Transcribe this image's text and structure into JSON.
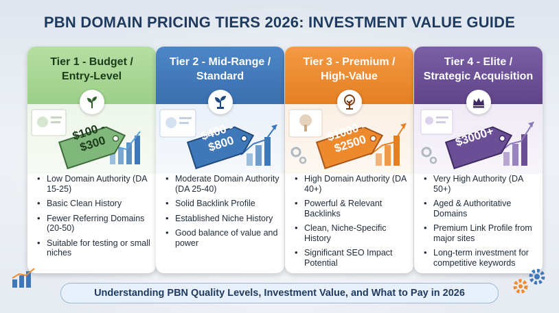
{
  "title": "PBN DOMAIN PRICING TIERS 2026: INVESTMENT VALUE GUIDE",
  "footer": "Understanding PBN Quality Levels, Investment Value, and What to Pay in 2026",
  "colors": {
    "tier1": "#8fc97a",
    "tier2": "#3f78b8",
    "tier3": "#ee8a2e",
    "tier4": "#6b4f96",
    "title": "#1f3a5f"
  },
  "tiers": [
    {
      "heading_line1": "Tier 1 - Budget /",
      "heading_line2": "Entry-Level",
      "icon": "seedling-icon",
      "price_line1": "$100 -",
      "price_line2": "$300",
      "bullets": [
        "Low Domain Authority (DA 15-25)",
        "Basic Clean History",
        "Fewer Referring Domains (20-50)",
        "Suitable for testing or small niches"
      ]
    },
    {
      "heading_line1": "Tier 2 - Mid-Range /",
      "heading_line2": "Standard",
      "icon": "sprout-icon",
      "price_line1": "$400 -",
      "price_line2": "$800",
      "bullets": [
        "Moderate Domain Authority (DA 25-40)",
        "Solid Backlink Profile",
        "Established Niche History",
        "Good balance of value and power"
      ]
    },
    {
      "heading_line1": "Tier 3 - Premium /",
      "heading_line2": "High-Value",
      "icon": "tree-icon",
      "price_line1": "$1000 -",
      "price_line2": "$2500",
      "bullets": [
        "High Domain Authority (DA 40+)",
        "Powerful & Relevant Backlinks",
        "Clean, Niche-Specific History",
        "Significant SEO Impact Potential"
      ]
    },
    {
      "heading_line1": "Tier 4 - Elite /",
      "heading_line2": "Strategic Acquisition",
      "icon": "crown-icon",
      "price_line1": "$3000+",
      "price_line2": "",
      "bullets": [
        "Very High Authority (DA 50+)",
        "Aged & Authoritative Domains",
        "Premium Link Profile from major sites",
        "Long-term investment for competitive keywords"
      ]
    }
  ]
}
